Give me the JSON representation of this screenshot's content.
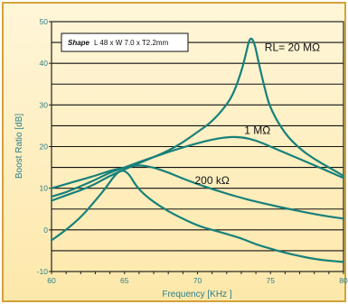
{
  "chart_data": {
    "type": "line",
    "title": "",
    "xlabel": "Frequency [KHz ]",
    "ylabel": "Boost Ratio [dB]",
    "xlim": [
      60,
      80
    ],
    "ylim": [
      -10,
      50
    ],
    "x_ticks": [
      "60",
      "65",
      "70",
      "75",
      "80"
    ],
    "y_ticks": [
      "50",
      "40",
      "30",
      "20",
      "10",
      "0",
      "-10"
    ],
    "grid": true,
    "shape_box": {
      "label": "Shape",
      "text": "L 48 x W 7.0 x T2.2mm"
    },
    "annotations": [
      {
        "text": "RL= 20 MΩ",
        "x": 76.5,
        "y": 43
      },
      {
        "text": "1 MΩ",
        "x": 74.1,
        "y": 23
      },
      {
        "text": "200 kΩ",
        "x": 71.0,
        "y": 11
      }
    ],
    "series": [
      {
        "values": [
          [
            60,
            7
          ],
          [
            61,
            8.3
          ],
          [
            62,
            9.5
          ],
          [
            63,
            11
          ],
          [
            64,
            13
          ],
          [
            65,
            14.5
          ],
          [
            66,
            16
          ],
          [
            67,
            17.5
          ],
          [
            68,
            19
          ],
          [
            69,
            21
          ],
          [
            70,
            23.5
          ],
          [
            71,
            26
          ],
          [
            72,
            30
          ],
          [
            72.5,
            33
          ],
          [
            73,
            38
          ],
          [
            73.3,
            42
          ],
          [
            73.6,
            46.5
          ],
          [
            73.9,
            45
          ],
          [
            74.2,
            40
          ],
          [
            74.6,
            34
          ],
          [
            75,
            29
          ],
          [
            76,
            23
          ],
          [
            77,
            19.5
          ],
          [
            78,
            17
          ],
          [
            79,
            15
          ],
          [
            80,
            13
          ]
        ]
      },
      {
        "values": [
          [
            60,
            8
          ],
          [
            61,
            9
          ],
          [
            62,
            10.5
          ],
          [
            63,
            12
          ],
          [
            64,
            13.8
          ],
          [
            65,
            15
          ],
          [
            66,
            16.3
          ],
          [
            67,
            17.5
          ],
          [
            68,
            18.7
          ],
          [
            69,
            19.8
          ],
          [
            70,
            20.8
          ],
          [
            71,
            21.7
          ],
          [
            72,
            22.3
          ],
          [
            73,
            22.3
          ],
          [
            74,
            21.5
          ],
          [
            75,
            20
          ],
          [
            76,
            18.5
          ],
          [
            77,
            17
          ],
          [
            78,
            15.5
          ],
          [
            79,
            14
          ],
          [
            80,
            12.5
          ]
        ]
      },
      {
        "values": [
          [
            60,
            10
          ],
          [
            61,
            11
          ],
          [
            62,
            12
          ],
          [
            63,
            13
          ],
          [
            64,
            14.2
          ],
          [
            65,
            15
          ],
          [
            66,
            15.6
          ],
          [
            67,
            15
          ],
          [
            68,
            13.8
          ],
          [
            69,
            12.3
          ],
          [
            70,
            11
          ],
          [
            71,
            9.8
          ],
          [
            72,
            8.7
          ],
          [
            73,
            7.7
          ],
          [
            74,
            6.8
          ],
          [
            75,
            6
          ],
          [
            76,
            5.2
          ],
          [
            77,
            4.5
          ],
          [
            78,
            3.8
          ],
          [
            79,
            3.2
          ],
          [
            80,
            2.7
          ]
        ]
      },
      {
        "values": [
          [
            60,
            -2.5
          ],
          [
            61,
            0
          ],
          [
            62,
            3
          ],
          [
            63,
            7
          ],
          [
            63.7,
            10
          ],
          [
            64.3,
            13
          ],
          [
            64.8,
            14.5
          ],
          [
            65.3,
            13.5
          ],
          [
            65.8,
            10.5
          ],
          [
            66.5,
            8
          ],
          [
            67.5,
            5.5
          ],
          [
            68.5,
            3.5
          ],
          [
            70,
            1
          ],
          [
            71,
            0
          ],
          [
            72,
            -1
          ],
          [
            73,
            -2
          ],
          [
            74,
            -3.5
          ],
          [
            75,
            -4.5
          ],
          [
            76,
            -5.5
          ],
          [
            77,
            -6.3
          ],
          [
            78,
            -7
          ],
          [
            79,
            -7.4
          ],
          [
            80,
            -7.7
          ]
        ]
      }
    ]
  }
}
